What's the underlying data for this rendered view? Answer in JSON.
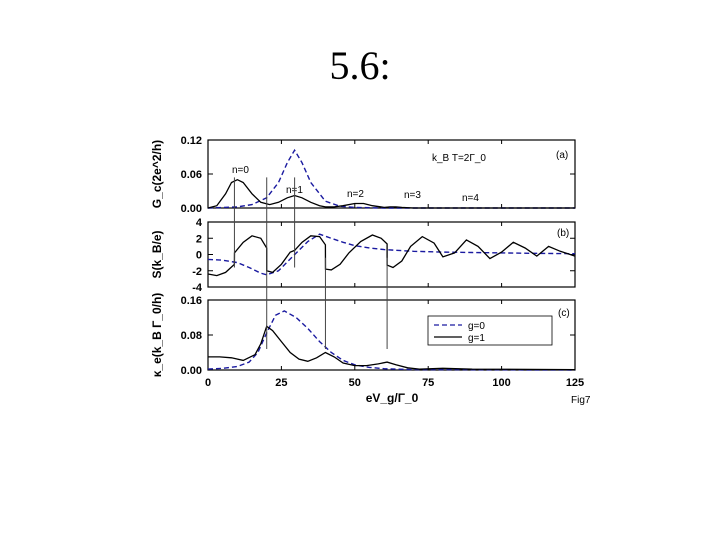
{
  "title": "5.6:",
  "figure_tag": "Fig7",
  "chart_data": [
    {
      "panel": "(a)",
      "type": "line",
      "ylabel": "G_c(2e^2/h)",
      "ylim": [
        0,
        0.12
      ],
      "yticks": [
        "0.00",
        "0.06",
        "0.12"
      ],
      "xlim": [
        0,
        125
      ],
      "annotation": "k_B T=2Γ_0",
      "peak_labels": [
        {
          "text": "n=0",
          "x": 12,
          "y": 0.072
        },
        {
          "text": "n=1",
          "x": 30,
          "y": 0.033
        },
        {
          "text": "n=2",
          "x": 52,
          "y": 0.027
        },
        {
          "text": "n=3",
          "x": 70,
          "y": 0.024
        },
        {
          "text": "n=4",
          "x": 90,
          "y": 0.014
        }
      ],
      "series": [
        {
          "name": "g=0",
          "style": "dashed",
          "color": "#1a1aa0",
          "x": [
            0,
            10,
            15,
            20,
            24,
            27,
            29.5,
            32,
            35,
            40,
            45,
            50,
            60,
            125
          ],
          "y": [
            0,
            0.002,
            0.006,
            0.018,
            0.045,
            0.08,
            0.102,
            0.08,
            0.045,
            0.012,
            0.003,
            0.001,
            0,
            0
          ]
        },
        {
          "name": "g=1",
          "style": "solid",
          "color": "#000000",
          "x": [
            0,
            3,
            6,
            8,
            10,
            12,
            15,
            18,
            21,
            24,
            27,
            29.5,
            32,
            35,
            38,
            40,
            43,
            46,
            50,
            53,
            56,
            60,
            62,
            64,
            66,
            70,
            80,
            125
          ],
          "y": [
            0,
            0.004,
            0.025,
            0.045,
            0.05,
            0.045,
            0.025,
            0.01,
            0.006,
            0.01,
            0.018,
            0.022,
            0.018,
            0.01,
            0.004,
            0.002,
            0.002,
            0.004,
            0.008,
            0.008,
            0.004,
            0.001,
            0.002,
            0.002,
            0.001,
            0,
            0,
            0
          ]
        }
      ]
    },
    {
      "panel": "(b)",
      "type": "line",
      "ylabel": "S(k_B/e)",
      "ylim": [
        -4,
        4
      ],
      "yticks": [
        "-4",
        "-2",
        "0",
        "2",
        "4"
      ],
      "xlim": [
        0,
        125
      ],
      "series": [
        {
          "name": "g=0",
          "style": "dashed",
          "color": "#1a1aa0",
          "x": [
            0,
            5,
            10,
            14,
            18,
            20,
            24,
            29,
            34,
            38,
            42,
            46,
            50,
            55,
            60,
            70,
            80,
            90,
            100,
            110,
            125
          ],
          "y": [
            -0.6,
            -0.7,
            -1.0,
            -1.6,
            -2.3,
            -2.5,
            -2.0,
            -0.2,
            1.6,
            2.5,
            2.0,
            1.5,
            1.1,
            0.8,
            0.6,
            0.4,
            0.3,
            0.25,
            0.2,
            0.15,
            0.1
          ]
        },
        {
          "name": "g=1",
          "style": "solid",
          "color": "#000000",
          "x": [
            0,
            3,
            6,
            9,
            9.01,
            12,
            15,
            18,
            20,
            20.01,
            22,
            25,
            28,
            29.5,
            32,
            35,
            38,
            40,
            40.01,
            42,
            45,
            48,
            52,
            56,
            59,
            61,
            61.01,
            63,
            66,
            69,
            73,
            77,
            80,
            84,
            88,
            92,
            96,
            100,
            104,
            108,
            112,
            116,
            120,
            125
          ],
          "y": [
            -2.4,
            -2.6,
            -2.2,
            -1.2,
            0.2,
            1.5,
            2.3,
            2.0,
            0.8,
            -2.0,
            -2.2,
            -1.2,
            0.3,
            0.5,
            1.5,
            2.3,
            2.2,
            1.2,
            -1.8,
            -1.9,
            -1.2,
            0.2,
            1.6,
            2.4,
            2.0,
            1.3,
            -1.3,
            -1.6,
            -0.8,
            1.0,
            2.2,
            1.4,
            -0.3,
            0.2,
            1.8,
            1.0,
            -0.5,
            0.3,
            1.5,
            0.8,
            -0.2,
            1.0,
            0.4,
            -0.2
          ]
        }
      ]
    },
    {
      "panel": "(c)",
      "type": "line",
      "ylabel": "κ_e(k_B Γ_0/h)",
      "ylim": [
        0,
        0.16
      ],
      "yticks": [
        "0.00",
        "0.08",
        "0.16"
      ],
      "xlim": [
        0,
        125
      ],
      "xticks": [
        "0",
        "25",
        "50",
        "75",
        "100",
        "125"
      ],
      "xlabel": "eV_g/Γ_0",
      "legend": {
        "position": "center-right",
        "entries": [
          "g=0",
          "g=1"
        ]
      },
      "series": [
        {
          "name": "g=0",
          "style": "dashed",
          "color": "#1a1aa0",
          "x": [
            0,
            5,
            10,
            14,
            17,
            20,
            23,
            26,
            30,
            34,
            38,
            42,
            46,
            50,
            55,
            60,
            70,
            125
          ],
          "y": [
            0.002,
            0.004,
            0.008,
            0.018,
            0.04,
            0.085,
            0.125,
            0.135,
            0.12,
            0.095,
            0.065,
            0.04,
            0.022,
            0.012,
            0.006,
            0.003,
            0.001,
            0
          ]
        },
        {
          "name": "g=1",
          "style": "solid",
          "color": "#000000",
          "x": [
            0,
            4,
            8,
            12,
            16,
            18,
            20,
            22,
            25,
            28,
            31,
            34,
            37,
            40,
            43,
            46,
            50,
            54,
            58,
            61,
            64,
            68,
            72,
            80,
            90,
            125
          ],
          "y": [
            0.03,
            0.03,
            0.028,
            0.022,
            0.035,
            0.06,
            0.1,
            0.09,
            0.065,
            0.04,
            0.025,
            0.02,
            0.028,
            0.04,
            0.03,
            0.016,
            0.01,
            0.01,
            0.014,
            0.018,
            0.012,
            0.005,
            0.002,
            0.004,
            0.002,
            0.001
          ]
        }
      ]
    }
  ],
  "transitions": [
    {
      "x": 9,
      "from_panel": "(a)",
      "to_panel": "(b)"
    },
    {
      "x": 20,
      "from_panel": "(a)",
      "to_panel": "(c)"
    },
    {
      "x": 29.5,
      "from_panel": "(a)",
      "to_panel": "(b)"
    },
    {
      "x": 40,
      "from_panel": "(b)",
      "to_panel": "(c)"
    },
    {
      "x": 61,
      "from_panel": "(b)",
      "to_panel": "(c)"
    }
  ]
}
